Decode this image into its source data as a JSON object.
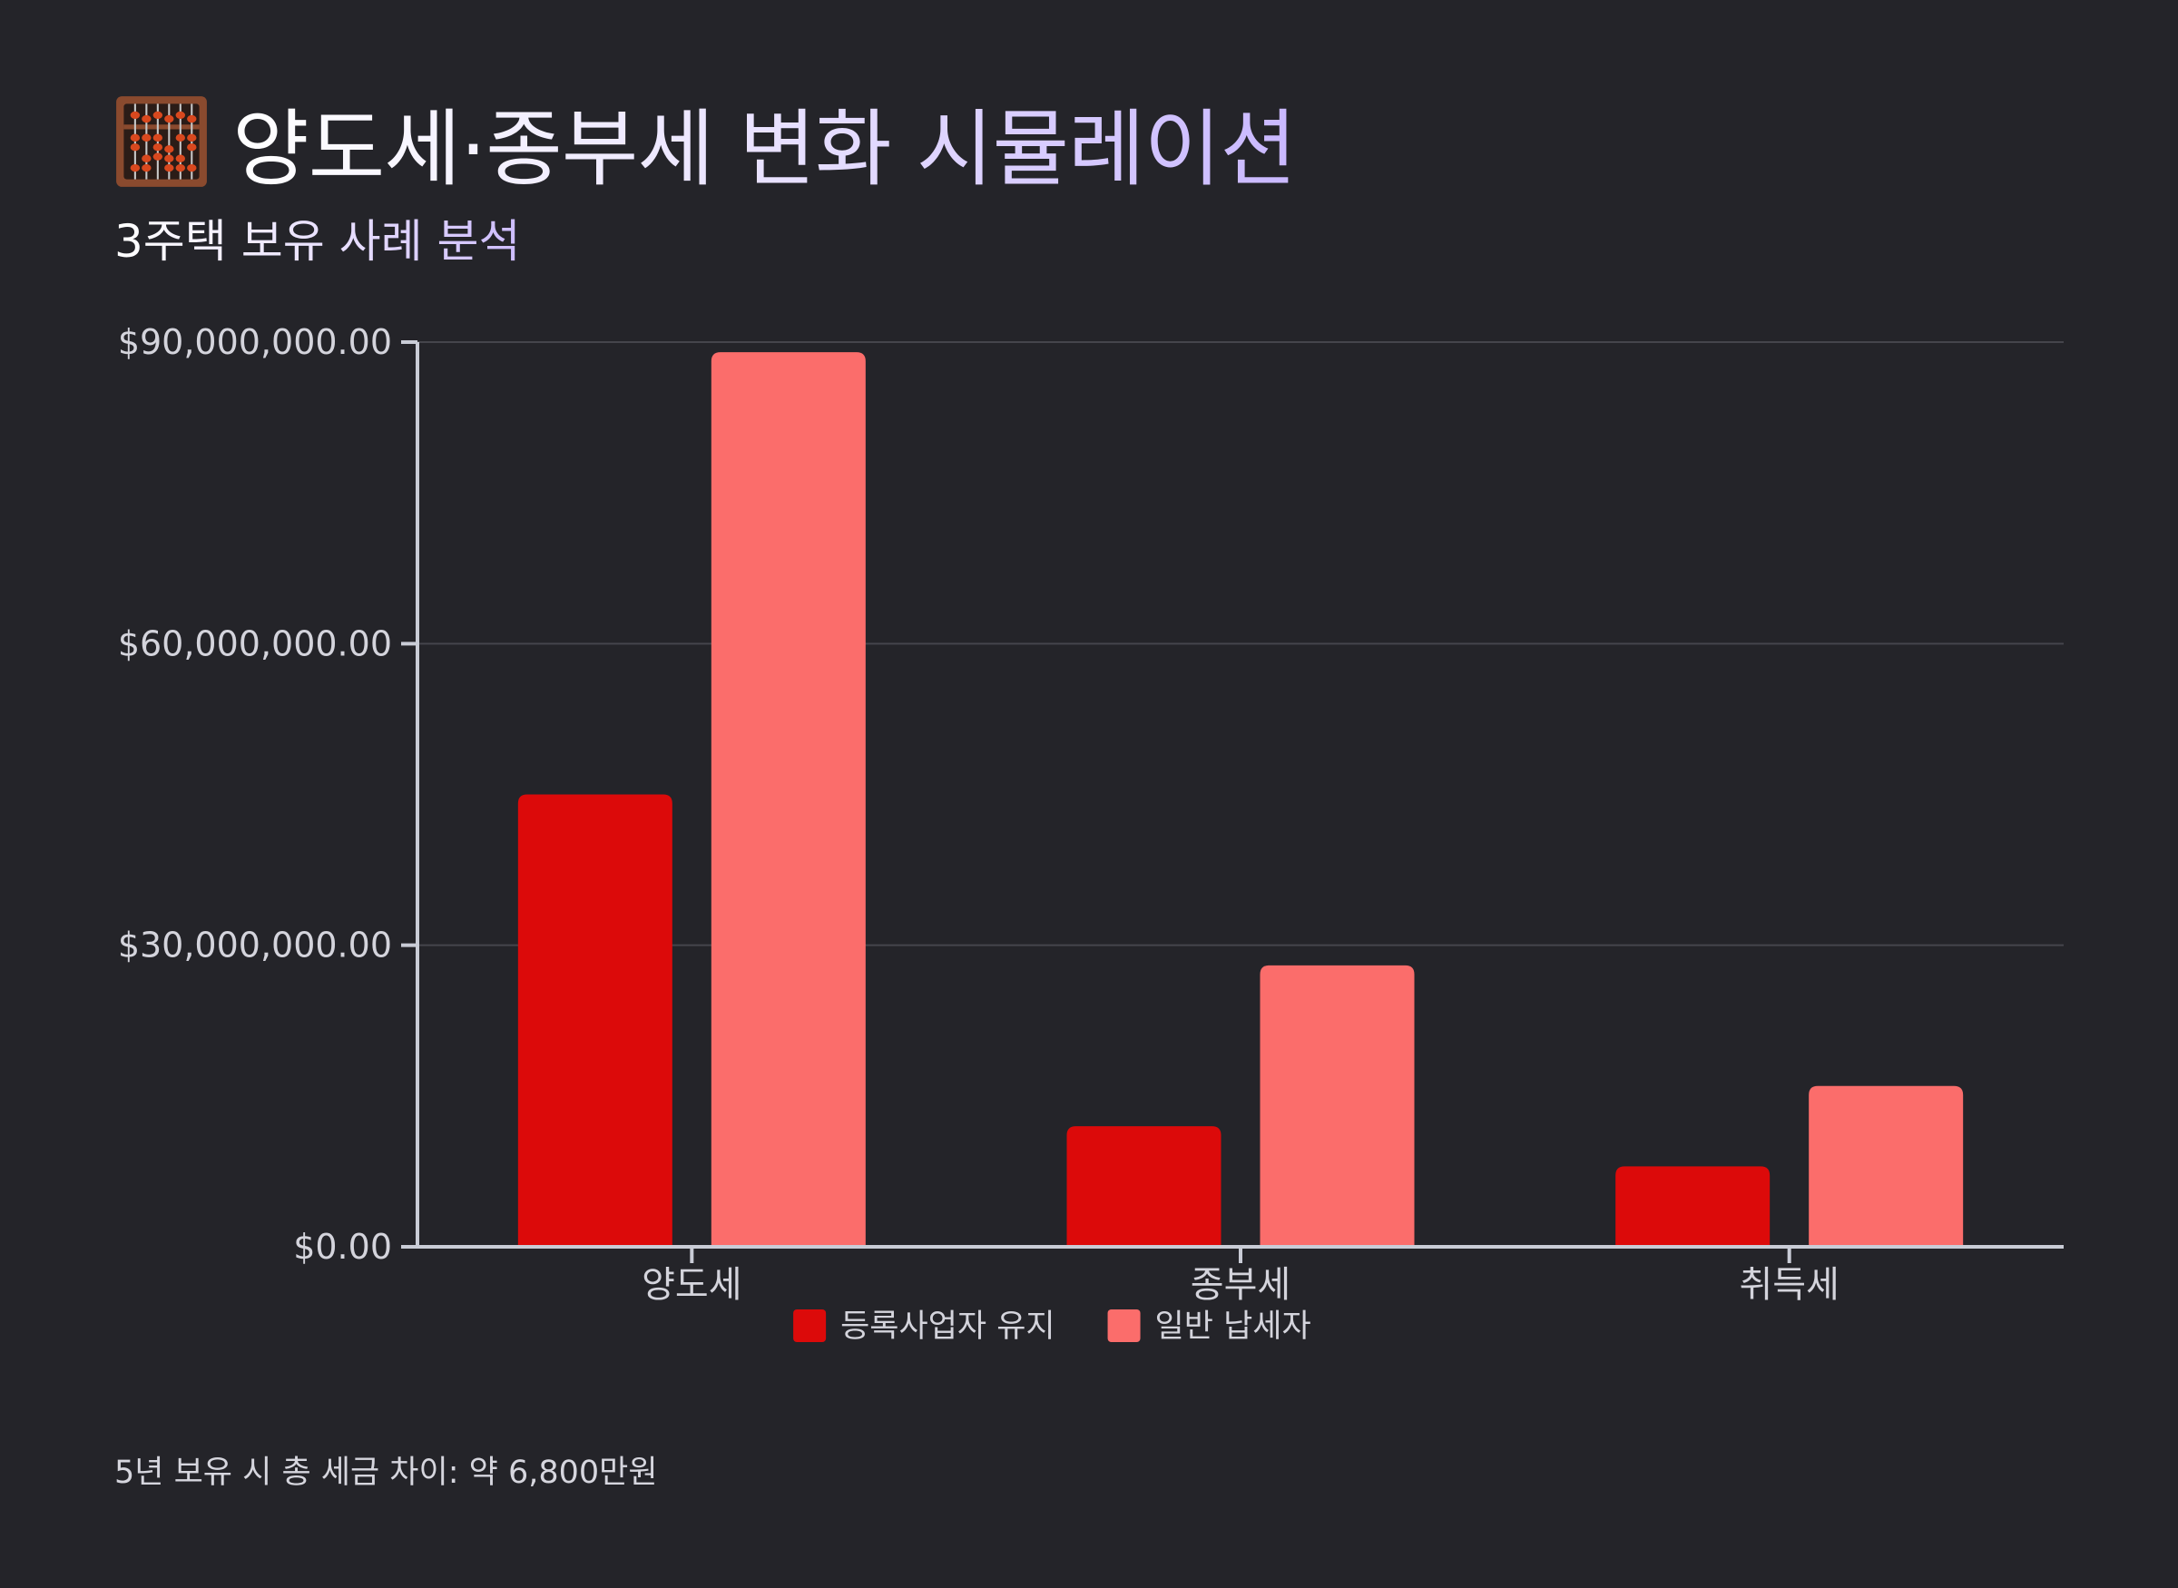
{
  "header": {
    "title": "양도세·종부세 변화 시뮬레이션",
    "icon": "abacus-icon",
    "subtitle": "3주택 보유 사례 분석"
  },
  "chart_data": {
    "type": "bar",
    "categories": [
      "양도세",
      "종부세",
      "취득세"
    ],
    "series": [
      {
        "name": "등록사업자 유지",
        "values": [
          45000000,
          12000000,
          8000000
        ],
        "color": "#dc0a0a"
      },
      {
        "name": "일반 납세자",
        "values": [
          89000000,
          28000000,
          16000000
        ],
        "color": "#fb6d6b"
      }
    ],
    "y_ticks": [
      0,
      30000000,
      60000000,
      90000000
    ],
    "y_tick_labels": [
      "$0.00",
      "$30,000,000.00",
      "$60,000,000.00",
      "$90,000,000.00"
    ],
    "ylim": [
      0,
      90000000
    ],
    "grid": true,
    "legend_position": "bottom"
  },
  "footnote": "5년 보유 시 총 세금 차이: 약 6,800만원",
  "colors": {
    "background": "#242429",
    "axis": "#c9ccd6",
    "grid": "#45454c",
    "tick_text": "#d4d4dc"
  }
}
